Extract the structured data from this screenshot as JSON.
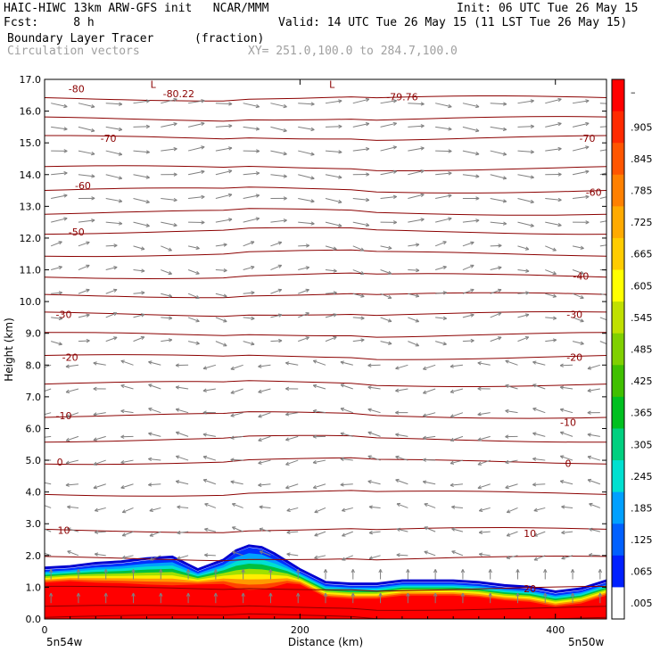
{
  "header": {
    "line1_left": "HAIC-HIWC 13km ARW-GFS init   NCAR/MMM",
    "line1_right": "Init: 06 UTC Tue 26 May 15",
    "line2_left": "Fcst:     8 h",
    "line2_right": "Valid: 14 UTC Tue 26 May 15 (11 LST Tue 26 May 15)",
    "line3_left": "Boundary Layer Tracer",
    "line3_units": "(fraction)",
    "line4_left": "Circulation vectors",
    "line4_xy": "XY= 251.0,100.0 to 284.7,100.0"
  },
  "chart_data": {
    "type": "heatmap",
    "title": "Boundary Layer Tracer",
    "units": "fraction",
    "xlabel": "Distance (km)",
    "ylabel": "Height (km)",
    "xlim": [
      0,
      440
    ],
    "ylim": [
      0,
      17
    ],
    "x_ticks": [
      0,
      200,
      400
    ],
    "y_ticks": [
      "0.0",
      "1.0",
      "2.0",
      "3.0",
      "4.0",
      "5.0",
      "6.0",
      "7.0",
      "8.0",
      "9.0",
      "10.0",
      "11.0",
      "12.0",
      "13.0",
      "14.0",
      "15.0",
      "16.0",
      "17.0"
    ],
    "x_endpoint_labels": [
      "5n54w",
      "5n50w"
    ],
    "colorbar_labels": [
      "–",
      ".905",
      ".845",
      ".785",
      ".725",
      ".665",
      ".605",
      ".545",
      ".485",
      ".425",
      ".365",
      ".305",
      ".245",
      ".185",
      ".125",
      ".065",
      ".005"
    ],
    "colorbar_colors": [
      "#ff0000",
      "#ff2a00",
      "#ff5500",
      "#ff8000",
      "#ffaa00",
      "#ffcc00",
      "#ffff00",
      "#c0e000",
      "#80d000",
      "#40c000",
      "#00c020",
      "#00d080",
      "#00e0d0",
      "#00a0ff",
      "#0060ff",
      "#0020ff",
      "#ffffff"
    ],
    "tracer_top": {
      "x": [
        0,
        20,
        40,
        60,
        80,
        100,
        120,
        140,
        150,
        160,
        170,
        180,
        190,
        200,
        210,
        220,
        240,
        260,
        280,
        300,
        320,
        340,
        360,
        380,
        400,
        420,
        440
      ],
      "height": [
        1.55,
        1.6,
        1.7,
        1.75,
        1.85,
        1.9,
        1.5,
        1.8,
        2.1,
        2.25,
        2.2,
        2.0,
        1.75,
        1.5,
        1.3,
        1.1,
        1.05,
        1.05,
        1.15,
        1.15,
        1.15,
        1.1,
        1.0,
        0.95,
        0.8,
        0.9,
        1.15
      ]
    },
    "temperature_contours": [
      {
        "label": "-80",
        "x": 25,
        "height": 16.7
      },
      {
        "label": "-80.22",
        "x": 105,
        "height": 16.55
      },
      {
        "label": "-79.76",
        "x": 280,
        "height": 16.45
      },
      {
        "label": "-70",
        "x": 50,
        "height": 15.15
      },
      {
        "label": "-70",
        "x": 425,
        "height": 15.15
      },
      {
        "label": "-60",
        "x": 30,
        "height": 13.65
      },
      {
        "label": "-60",
        "x": 430,
        "height": 13.45
      },
      {
        "label": "-50",
        "x": 25,
        "height": 12.2
      },
      {
        "label": "-40",
        "x": 420,
        "height": 10.8
      },
      {
        "label": "-30",
        "x": 15,
        "height": 9.6
      },
      {
        "label": "-30",
        "x": 415,
        "height": 9.6
      },
      {
        "label": "-20",
        "x": 20,
        "height": 8.25
      },
      {
        "label": "-20",
        "x": 415,
        "height": 8.25
      },
      {
        "label": "-10",
        "x": 15,
        "height": 6.4
      },
      {
        "label": "-10",
        "x": 410,
        "height": 6.2
      },
      {
        "label": "0",
        "x": 12,
        "height": 4.95
      },
      {
        "label": "0",
        "x": 410,
        "height": 4.9
      },
      {
        "label": "10",
        "x": 15,
        "height": 2.8
      },
      {
        "label": "10",
        "x": 380,
        "height": 2.7
      },
      {
        "label": "20",
        "x": 380,
        "height": 0.95
      }
    ],
    "low_labels": [
      {
        "label": "L",
        "x": 85,
        "height": 16.85
      },
      {
        "label": "L",
        "x": 225,
        "height": 16.85
      }
    ]
  },
  "colors": {
    "contour": "#8b0000",
    "vector": "#808080",
    "tracer_dark_blue": "#0000d0"
  }
}
